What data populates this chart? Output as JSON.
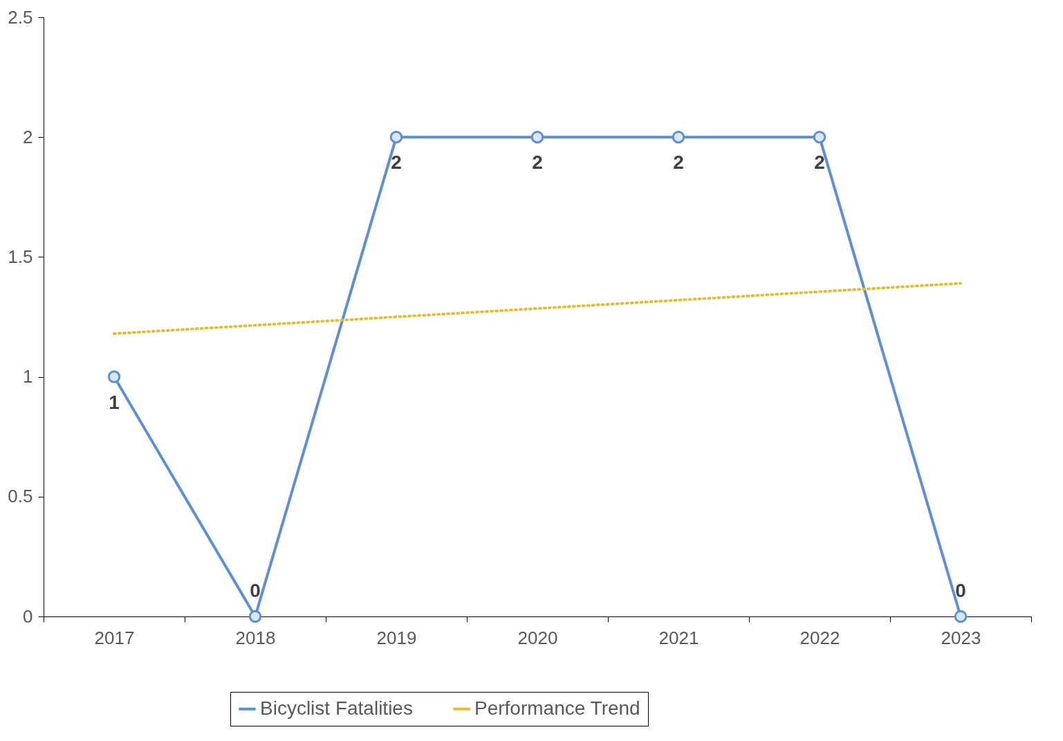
{
  "chart_data": {
    "type": "line",
    "categories": [
      "2017",
      "2018",
      "2019",
      "2020",
      "2021",
      "2022",
      "2023"
    ],
    "series": [
      {
        "name": "Bicyclist Fatalities",
        "color": "#5b8fd6",
        "values": [
          1,
          0,
          2,
          2,
          2,
          2,
          0
        ],
        "marker": "circle",
        "line_style": "solid",
        "value_labels": [
          "1",
          "0",
          "2",
          "2",
          "2",
          "2",
          "0"
        ]
      },
      {
        "name": "Performance Trend",
        "color": "#e3bd36",
        "values": [
          1.18,
          1.215,
          1.25,
          1.285,
          1.32,
          1.355,
          1.39
        ],
        "marker": "none",
        "line_style": "dotted"
      }
    ],
    "ylim": [
      0,
      2.5
    ],
    "yticks": [
      0,
      0.5,
      1,
      1.5,
      2,
      2.5
    ],
    "grid": false,
    "legend": "bottom"
  }
}
